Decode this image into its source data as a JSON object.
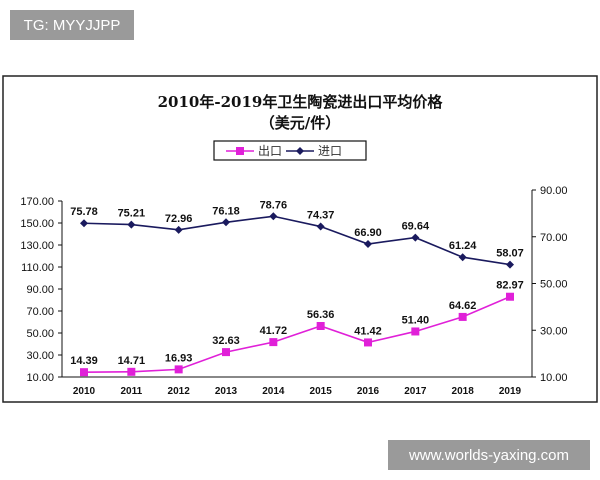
{
  "watermarks": {
    "top": "TG: MYYJJPP",
    "bottom": "www.worlds-yaxing.com"
  },
  "chart_data": {
    "type": "line",
    "title": "2010年-2019年卫生陶瓷进出口平均价格",
    "subtitle": "（美元/件）",
    "categories": [
      "2010",
      "2011",
      "2012",
      "2013",
      "2014",
      "2015",
      "2016",
      "2017",
      "2018",
      "2019"
    ],
    "series": [
      {
        "name": "出口",
        "axis": "left",
        "color": "#e020d8",
        "marker": "square",
        "values": [
          14.39,
          14.71,
          16.93,
          32.63,
          41.72,
          56.36,
          41.42,
          51.4,
          64.62,
          82.97
        ]
      },
      {
        "name": "进口",
        "axis": "right",
        "color": "#1a1a5e",
        "marker": "diamond",
        "values": [
          75.78,
          75.21,
          72.96,
          76.18,
          78.76,
          74.37,
          66.9,
          69.64,
          61.24,
          58.07
        ]
      }
    ],
    "y_left": {
      "range": [
        10,
        170
      ],
      "ticks": [
        "10.00",
        "30.00",
        "50.00",
        "70.00",
        "90.00",
        "110.00",
        "130.00",
        "150.00",
        "170.00"
      ]
    },
    "y_right": {
      "range": [
        10,
        90
      ],
      "ticks": [
        "10.00",
        "30.00",
        "50.00",
        "70.00",
        "90.00"
      ]
    },
    "legend": "top-center",
    "grid": false
  }
}
